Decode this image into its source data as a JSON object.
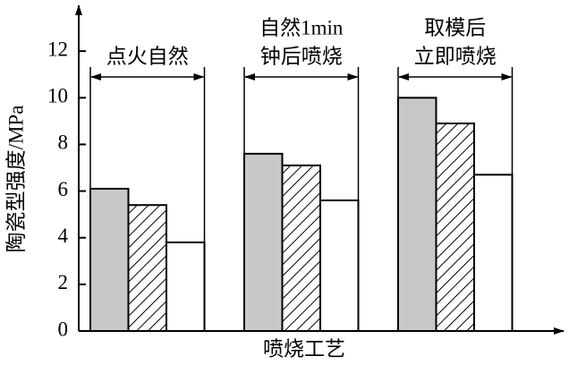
{
  "chart_data": {
    "type": "bar",
    "y_label": "陶瓷型强度/MPa",
    "x_label": "喷烧工艺",
    "categories": [
      [
        "点火自然"
      ],
      [
        "自然1min",
        "钟后喷烧"
      ],
      [
        "取模后",
        "立即喷烧"
      ]
    ],
    "series": [
      {
        "color": "#c8c8c8",
        "pattern": "solid",
        "values": [
          6.1,
          7.6,
          10.0
        ]
      },
      {
        "color": "#ffffff",
        "pattern": "hatch",
        "values": [
          5.4,
          7.1,
          8.9
        ]
      },
      {
        "color": "#ffffff",
        "pattern": "solid",
        "values": [
          3.8,
          5.6,
          6.7
        ]
      }
    ],
    "ylim": [
      0,
      14
    ],
    "yticks": [
      0,
      2,
      4,
      6,
      8,
      10,
      12
    ],
    "grid": false
  }
}
